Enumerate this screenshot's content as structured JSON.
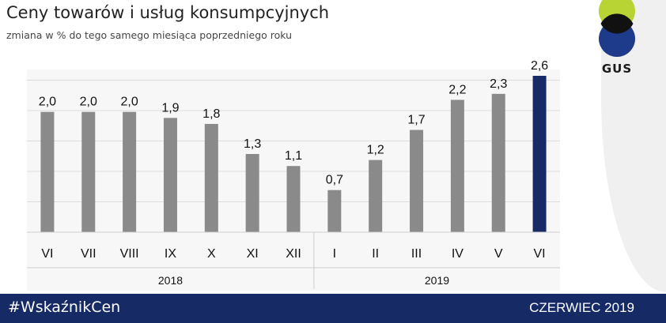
{
  "header": {
    "title": "Ceny towarów i usług konsumpcyjnych",
    "subtitle": "zmiana w % do tego samego miesiąca poprzedniego roku"
  },
  "logo": {
    "text": "GUS",
    "colors": {
      "top": "#b7d334",
      "bottom": "#1e3a8a",
      "band": "#111111"
    }
  },
  "footer": {
    "hashtag": "#WskaźnikCen",
    "date": "CZERWIEC 2019",
    "background": "#162a66"
  },
  "colors": {
    "bar": "#8a8a8a",
    "highlight": "#162a66",
    "grid": "#dcdcdc"
  },
  "chart_data": {
    "type": "bar",
    "title": "Ceny towarów i usług konsumpcyjnych",
    "subtitle": "zmiana w % do tego samego miesiąca poprzedniego roku",
    "categories": [
      "VI",
      "VII",
      "VIII",
      "IX",
      "X",
      "XI",
      "XII",
      "I",
      "II",
      "III",
      "IV",
      "V",
      "VI"
    ],
    "values": [
      2.0,
      2.0,
      2.0,
      1.9,
      1.8,
      1.3,
      1.1,
      0.7,
      1.2,
      1.7,
      2.2,
      2.3,
      2.6
    ],
    "value_labels": [
      "2,0",
      "2,0",
      "2,0",
      "1,9",
      "1,8",
      "1,3",
      "1,1",
      "0,7",
      "1,2",
      "1,7",
      "2,2",
      "2,3",
      "2,6"
    ],
    "highlight_index": 12,
    "groups": [
      {
        "label": "2018",
        "start": 0,
        "end": 6
      },
      {
        "label": "2019",
        "start": 7,
        "end": 12
      }
    ],
    "ylim": [
      0,
      2.6
    ],
    "grid": true,
    "xlabel": "",
    "ylabel": ""
  }
}
